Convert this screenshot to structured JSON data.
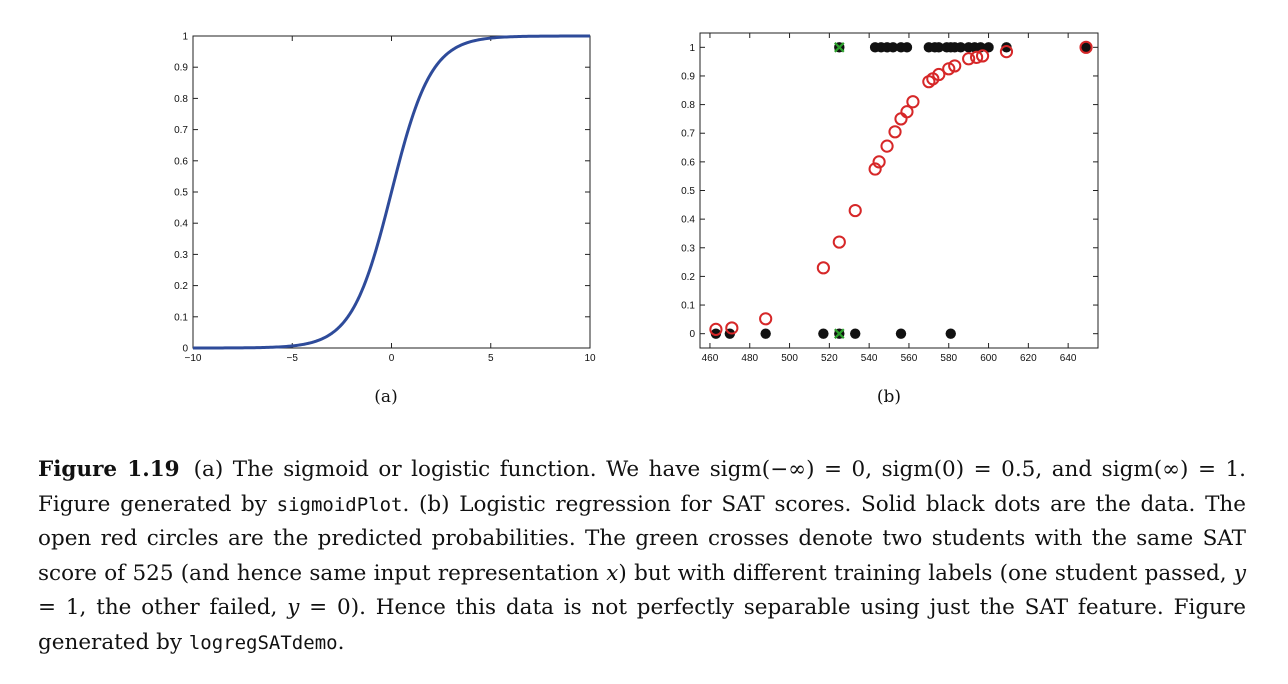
{
  "chart_data": [
    {
      "type": "line",
      "subfigure_label": "(a)",
      "xlim": [
        -10,
        10
      ],
      "ylim": [
        0,
        1
      ],
      "xticks": [
        "−10",
        "−5",
        "0",
        "5",
        "10"
      ],
      "yticks": [
        "0",
        "0.1",
        "0.2",
        "0.3",
        "0.4",
        "0.5",
        "0.6",
        "0.7",
        "0.8",
        "0.9",
        "1"
      ],
      "series": [
        {
          "function": "sigmoid",
          "color": "#2e4b9a",
          "x": [
            -10,
            -8,
            -6,
            -5,
            -4,
            -3,
            -2,
            -1,
            0,
            1,
            2,
            3,
            4,
            5,
            6,
            8,
            10
          ],
          "y": [
            0.0,
            0.0003,
            0.0025,
            0.0067,
            0.018,
            0.047,
            0.119,
            0.269,
            0.5,
            0.731,
            0.881,
            0.953,
            0.982,
            0.993,
            0.9975,
            0.9997,
            1.0
          ]
        }
      ],
      "grid": false
    },
    {
      "type": "scatter",
      "subfigure_label": "(b)",
      "xlim": [
        455,
        655
      ],
      "ylim": [
        -0.05,
        1.05
      ],
      "xticks": [
        "460",
        "480",
        "500",
        "520",
        "540",
        "560",
        "580",
        "600",
        "620",
        "640"
      ],
      "yticks": [
        "0",
        "0.1",
        "0.2",
        "0.3",
        "0.4",
        "0.5",
        "0.6",
        "0.7",
        "0.8",
        "0.9",
        "1"
      ],
      "series": [
        {
          "marker": "filled-circle",
          "color": "#111111",
          "x": [
            463,
            470,
            488,
            517,
            525,
            533,
            556,
            581,
            525,
            543,
            546,
            549,
            552,
            556,
            559,
            570,
            573,
            575,
            579,
            581,
            583,
            586,
            590,
            593,
            596,
            600,
            609,
            649
          ],
          "y": [
            0,
            0,
            0,
            0,
            0,
            0,
            0,
            0,
            1,
            1,
            1,
            1,
            1,
            1,
            1,
            1,
            1,
            1,
            1,
            1,
            1,
            1,
            1,
            1,
            1,
            1,
            1,
            1
          ]
        },
        {
          "marker": "open-circle",
          "color": "#d62728",
          "x": [
            463,
            471,
            488,
            517,
            525,
            533,
            543,
            545,
            549,
            553,
            556,
            559,
            562,
            570,
            572,
            575,
            580,
            583,
            590,
            594,
            597,
            609,
            649
          ],
          "y": [
            0.015,
            0.02,
            0.052,
            0.23,
            0.32,
            0.43,
            0.575,
            0.6,
            0.655,
            0.705,
            0.75,
            0.775,
            0.81,
            0.88,
            0.89,
            0.905,
            0.925,
            0.935,
            0.96,
            0.965,
            0.97,
            0.985,
            1.0
          ]
        },
        {
          "marker": "cross",
          "color": "#2ca02c",
          "x": [
            525,
            525
          ],
          "y": [
            0,
            1
          ]
        }
      ],
      "grid": false
    }
  ],
  "caption": {
    "figure_label": "Figure 1.19",
    "part1": "(a) The sigmoid or logistic function. We have sigm(−∞) = 0, sigm(0) = 0.5, and sigm(∞) = 1. Figure generated by ",
    "code1": "sigmoidPlot",
    "part2": ". (b) Logistic regression for SAT scores. Solid black dots are the data. The open red circles are the predicted probabilities. The green crosses denote two students with the same SAT score of 525 (and hence same input representation ",
    "math_x": "x",
    "part3": ") but with different training labels (one student passed, ",
    "math_y1": "y",
    "part4": " = 1, the other failed, ",
    "math_y2": "y",
    "part5": " = 0). Hence this data is not perfectly separable using just the SAT feature. Figure generated by ",
    "code2": "logregSATdemo",
    "part6": "."
  }
}
